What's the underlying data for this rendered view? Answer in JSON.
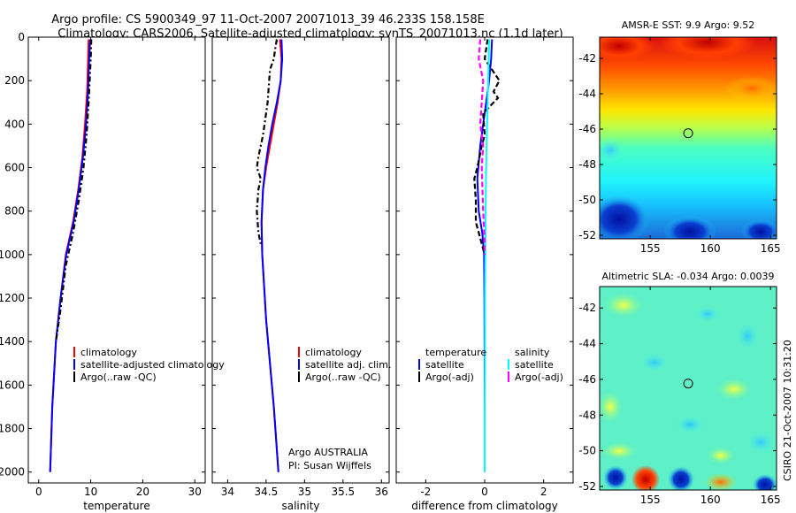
{
  "header": {
    "line1": "Argo profile: CS 5900349_97 11-Oct-2007 20071013_39 46.233S 158.158E",
    "line2": "Climatology: CARS2006. Satellite-adjusted climatology: synTS_20071013.nc (1.1d later)"
  },
  "colors": {
    "climatology": "#ff0000",
    "satellite": "#0000ff",
    "argo": "#000000",
    "salinity_satellite": "#00ffff",
    "salinity_argo": "#ff00ff",
    "marker": "#000000"
  },
  "chart_data": [
    {
      "type": "line",
      "id": "temperature",
      "xlabel": "temperature",
      "xlim": [
        -2,
        32
      ],
      "ylim": [
        2050,
        0
      ],
      "xticks": [
        0,
        10,
        20,
        30
      ],
      "yticks": [
        0,
        200,
        400,
        600,
        800,
        1000,
        1200,
        1400,
        1600,
        1800,
        2000
      ],
      "series": [
        {
          "name": "climatology",
          "key": "climatology",
          "style": "solid",
          "x": [
            9.6,
            9.5,
            9.3,
            8.9,
            8.4,
            7.6,
            6.6,
            5.2,
            4.2,
            3.3,
            2.6,
            2.2
          ],
          "y": [
            10,
            100,
            250,
            400,
            550,
            700,
            850,
            1000,
            1200,
            1400,
            1700,
            2000
          ]
        },
        {
          "name": "satellite-adjusted climatology",
          "key": "satellite",
          "style": "solid",
          "x": [
            9.9,
            9.7,
            9.5,
            9.1,
            8.5,
            7.7,
            6.7,
            5.3,
            4.2,
            3.3,
            2.6,
            2.2
          ],
          "y": [
            10,
            100,
            250,
            400,
            550,
            700,
            850,
            1000,
            1200,
            1400,
            1700,
            2000
          ]
        },
        {
          "name": "Argo(..raw -QC)",
          "key": "argo",
          "style": "dashdot",
          "x": [
            10.1,
            10.0,
            9.8,
            9.6,
            9.2,
            8.6,
            7.7,
            6.6,
            5.2,
            4.2,
            3.3
          ],
          "y": [
            10,
            100,
            200,
            300,
            450,
            600,
            750,
            900,
            1050,
            1250,
            1400
          ]
        }
      ],
      "legend": {
        "entries": [
          "climatology",
          "satellite-adjusted climatology",
          "Argo(..raw -QC)"
        ],
        "placement": "lower-right"
      }
    },
    {
      "type": "line",
      "id": "salinity",
      "xlabel": "salinity",
      "xlim": [
        33.8,
        36.1
      ],
      "ylim": [
        2050,
        0
      ],
      "xticks": [
        34,
        34.5,
        35,
        35.5,
        36
      ],
      "xticklabels": [
        "34",
        "34.5",
        "35",
        "35.5",
        "36"
      ],
      "yticks": [
        0,
        200,
        400,
        600,
        800,
        1000,
        1200,
        1400,
        1600,
        1800,
        2000
      ],
      "series": [
        {
          "name": "climatology",
          "key": "climatology",
          "style": "solid",
          "x": [
            34.68,
            34.7,
            34.69,
            34.65,
            34.6,
            34.55,
            34.5,
            34.46,
            34.44,
            34.45,
            34.5,
            34.6,
            34.66
          ],
          "y": [
            10,
            100,
            200,
            300,
            400,
            500,
            600,
            700,
            850,
            1000,
            1300,
            1700,
            2000
          ]
        },
        {
          "name": "satellite adj. clim.",
          "key": "satellite",
          "style": "solid",
          "x": [
            34.7,
            34.71,
            34.69,
            34.64,
            34.58,
            34.53,
            34.49,
            34.46,
            34.44,
            34.45,
            34.5,
            34.6,
            34.66
          ],
          "y": [
            10,
            100,
            200,
            300,
            400,
            500,
            600,
            700,
            850,
            1000,
            1300,
            1700,
            2000
          ]
        },
        {
          "name": "Argo(..raw -QC)",
          "key": "argo",
          "style": "dashdot",
          "x": [
            34.64,
            34.62,
            34.6,
            34.55,
            34.52,
            34.46,
            34.4,
            34.38,
            34.43,
            34.4,
            34.38,
            34.4,
            34.43
          ],
          "y": [
            10,
            50,
            100,
            150,
            300,
            450,
            550,
            600,
            650,
            700,
            800,
            900,
            950
          ]
        }
      ],
      "legend": {
        "entries": [
          "climatology",
          "satellite adj. clim.",
          "Argo(..raw -QC)"
        ],
        "placement": "lower-right"
      },
      "annotation": {
        "line1": "Argo AUSTRALIA",
        "line2": "PI: Susan Wijffels"
      }
    },
    {
      "type": "line",
      "id": "difference",
      "xlabel": "difference from climatology",
      "xlim": [
        -3,
        3
      ],
      "ylim": [
        2050,
        0
      ],
      "xticks": [
        -2,
        0,
        2
      ],
      "xticklabels": [
        "-2",
        "0",
        "2"
      ],
      "yticks": [
        0,
        200,
        400,
        600,
        800,
        1000,
        1200,
        1400,
        1600,
        1800,
        2000
      ],
      "series": [
        {
          "name": "temperature satellite",
          "key": "satellite",
          "style": "solid",
          "x": [
            0.25,
            0.22,
            0.15,
            0.05,
            -0.05,
            -0.15,
            -0.25,
            -0.2,
            -0.08,
            -0.02,
            -0.01,
            0.0,
            0.0
          ],
          "y": [
            10,
            100,
            200,
            300,
            400,
            500,
            650,
            800,
            900,
            1000,
            1200,
            1600,
            2000
          ]
        },
        {
          "name": "temperature Argo(-adj)",
          "key": "argo",
          "style": "dashed",
          "x": [
            0.1,
            0.0,
            0.5,
            0.3,
            0.45,
            -0.05,
            0.0,
            -0.1,
            -0.25,
            -0.35,
            -0.3,
            -0.3,
            -0.1,
            0.0
          ],
          "y": [
            10,
            100,
            200,
            250,
            280,
            350,
            450,
            500,
            600,
            650,
            750,
            850,
            950,
            1000
          ]
        },
        {
          "name": "salinity satellite",
          "key": "salinity_satellite",
          "style": "solid",
          "x": [
            0.15,
            0.12,
            0.08,
            0.05,
            0.03,
            0.02,
            0.01,
            0.01,
            0.0,
            0.0
          ],
          "y": [
            10,
            200,
            400,
            600,
            800,
            1000,
            1200,
            1500,
            1800,
            2000
          ]
        },
        {
          "name": "salinity Argo(-adj)",
          "key": "salinity_argo",
          "style": "dashed",
          "x": [
            -0.15,
            -0.2,
            -0.05,
            -0.1,
            -0.15,
            -0.05,
            -0.1,
            -0.05,
            0.0,
            0.0
          ],
          "y": [
            10,
            100,
            200,
            300,
            400,
            500,
            600,
            800,
            950,
            1000
          ]
        }
      ],
      "legend": {
        "col1_header": "temperature",
        "col1": [
          "satellite",
          "Argo(-adj)"
        ],
        "col2_header": "salinity",
        "col2": [
          "satellite",
          "Argo(-adj)"
        ],
        "placement": "lower-center"
      }
    },
    {
      "type": "heatmap",
      "id": "amsre_sst",
      "title": "AMSR-E SST: 9.9 Argo: 9.52",
      "xlim": [
        150.8,
        165.5
      ],
      "ylim": [
        -52.2,
        -40.8
      ],
      "xticks": [
        155,
        160,
        165
      ],
      "yticks": [
        -42,
        -44,
        -46,
        -48,
        -50,
        -52
      ],
      "marker": {
        "x": 158.158,
        "y": -46.233
      }
    },
    {
      "type": "heatmap",
      "id": "altimetric_sla",
      "title": "Altimetric SLA: -0.034 Argo: 0.0039",
      "xlim": [
        150.8,
        165.5
      ],
      "ylim": [
        -52.2,
        -40.8
      ],
      "xticks": [
        155,
        160,
        165
      ],
      "yticks": [
        -42,
        -44,
        -46,
        -48,
        -50,
        -52
      ],
      "marker": {
        "x": 158.158,
        "y": -46.233
      }
    }
  ],
  "footer": {
    "stamp": "CSIRO 21-Oct-2007 10:31:20"
  }
}
